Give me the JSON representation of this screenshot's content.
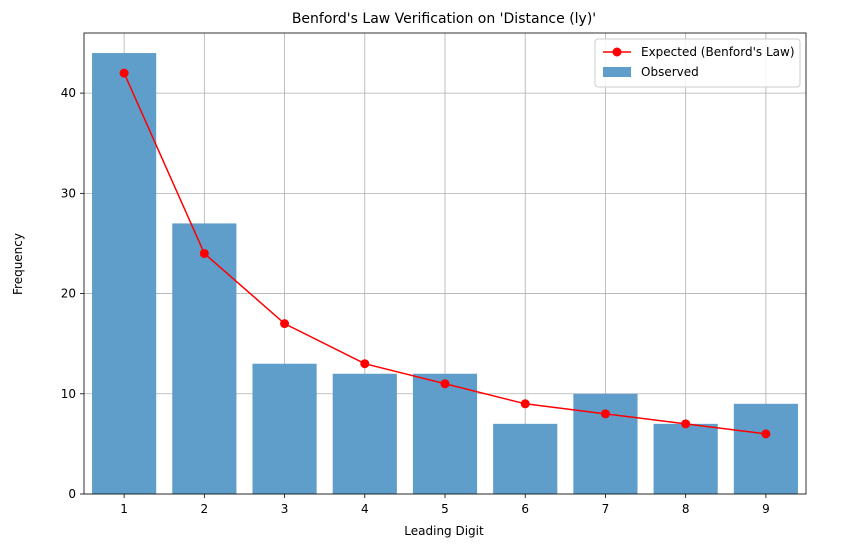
{
  "chart_data": {
    "type": "bar",
    "title": "Benford's Law Verification on 'Distance (ly)'",
    "xlabel": "Leading Digit",
    "ylabel": "Frequency",
    "categories": [
      "1",
      "2",
      "3",
      "4",
      "5",
      "6",
      "7",
      "8",
      "9"
    ],
    "series": [
      {
        "name": "Observed",
        "type": "bar",
        "color": "#5f9ecb",
        "values": [
          44,
          27,
          13,
          12,
          12,
          7,
          10,
          7,
          9
        ]
      },
      {
        "name": "Expected (Benford's Law)",
        "type": "line",
        "color": "#ff0000",
        "values": [
          42,
          24,
          17,
          13,
          11,
          9,
          8,
          7,
          6
        ]
      }
    ],
    "ylim": [
      0,
      46
    ],
    "yticks": [
      0,
      10,
      20,
      30,
      40
    ],
    "grid": true,
    "legend": "top-right",
    "legend_items": [
      {
        "label": "Expected (Benford's Law)",
        "kind": "line"
      },
      {
        "label": "Observed",
        "kind": "bar"
      }
    ]
  }
}
